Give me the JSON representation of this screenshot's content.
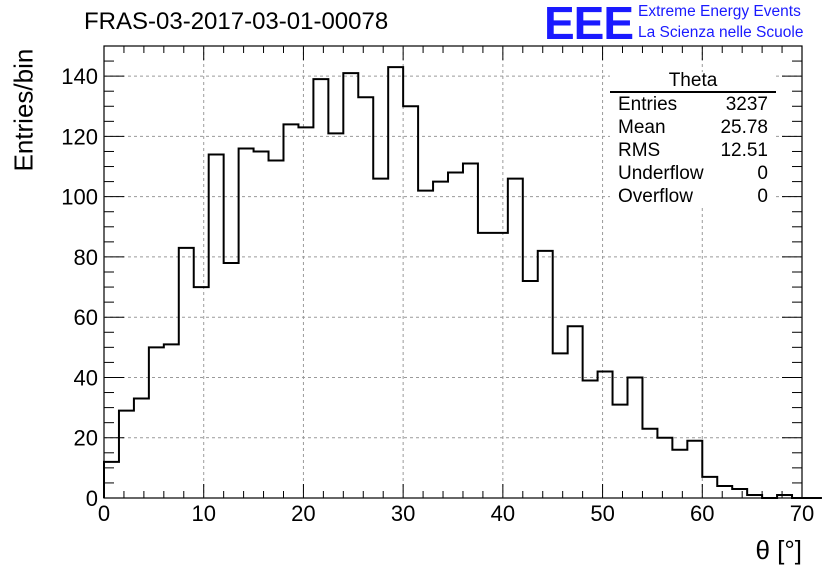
{
  "title": "FRAS-03-2017-03-01-00078",
  "logo": {
    "mark": "EEE",
    "line1": "Extreme Energy Events",
    "line2": "La Scienza nelle Scuole",
    "color": "#1a1aff"
  },
  "stats_box": {
    "title": "Theta",
    "rows": [
      {
        "label": "Entries",
        "value": "3237"
      },
      {
        "label": "Mean",
        "value": "25.78"
      },
      {
        "label": "RMS",
        "value": "12.51"
      },
      {
        "label": "Underflow",
        "value": "0"
      },
      {
        "label": "Overflow",
        "value": "0"
      }
    ]
  },
  "chart_data": {
    "type": "bar",
    "title": "FRAS-03-2017-03-01-00078",
    "xlabel": "θ [°]",
    "ylabel": "Entries/bin",
    "xlim": [
      0,
      70
    ],
    "ylim": [
      0,
      150
    ],
    "grid": true,
    "x_ticks": [
      "0",
      "10",
      "20",
      "30",
      "40",
      "50",
      "60",
      "70"
    ],
    "y_ticks": [
      "0",
      "20",
      "40",
      "60",
      "80",
      "100",
      "120",
      "140"
    ],
    "bin_width": 1.5,
    "bin_edges_start": 0,
    "values": [
      12,
      29,
      33,
      50,
      51,
      83,
      70,
      114,
      78,
      116,
      115,
      112,
      124,
      123,
      139,
      121,
      141,
      133,
      106,
      143,
      130,
      102,
      105,
      108,
      111,
      88,
      88,
      106,
      72,
      82,
      48,
      57,
      39,
      42,
      31,
      40,
      23,
      20,
      16,
      19,
      7,
      4,
      3,
      1,
      0,
      1,
      0,
      0
    ]
  }
}
